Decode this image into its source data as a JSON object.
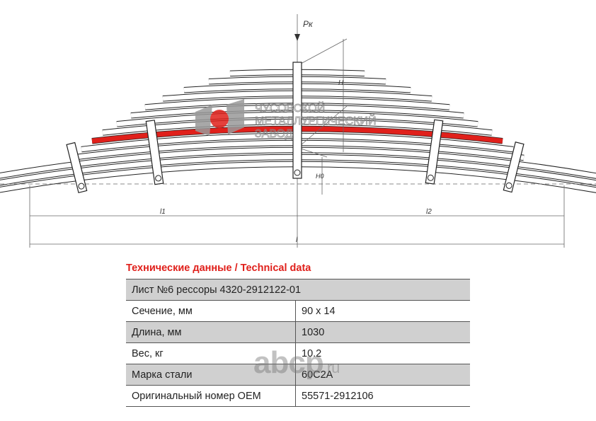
{
  "drawing": {
    "labels": {
      "force": "Pк",
      "height": "H",
      "height0": "H0",
      "l1": "l1",
      "l2": "l2",
      "l": "l"
    },
    "logo": {
      "line1": "ЧУСОВСКОЙ",
      "line2": "МЕТАЛЛУРГИЧЕСКИЙ",
      "line3": "ЗАВОД"
    },
    "colors": {
      "highlight_leaf": "#e0201b",
      "logo_gray": "#9a9a9a"
    }
  },
  "table": {
    "title": "Технические данные / Technical data",
    "header": "Лист №6 рессоры 4320-2912122-01",
    "rows": [
      {
        "label": "Сечение, мм",
        "value": "90 x 14"
      },
      {
        "label": "Длина, мм",
        "value": "1030"
      },
      {
        "label": "Вес, кг",
        "value": "10.2"
      },
      {
        "label": "Марка стали",
        "value": "60С2А"
      },
      {
        "label": "Оригинальный номер OEM",
        "value": "55571-2912106"
      }
    ]
  },
  "watermark": {
    "text": "abcp",
    "suffix": ".ru"
  }
}
